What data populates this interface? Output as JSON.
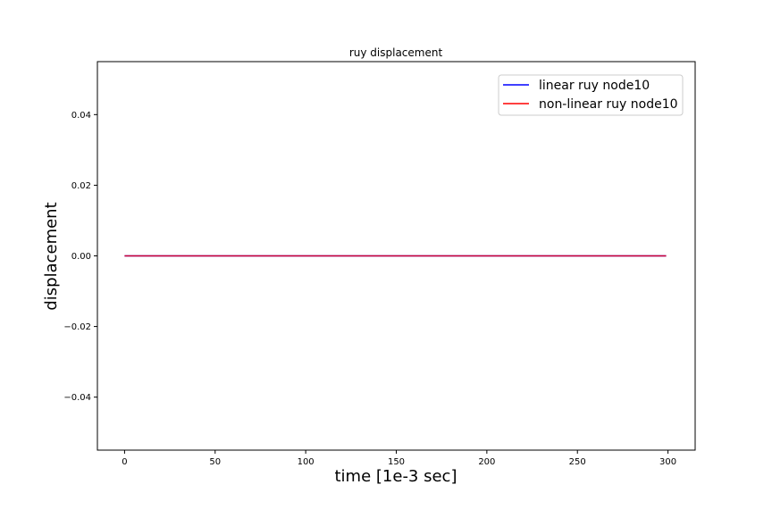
{
  "chart_data": {
    "type": "line",
    "title": "ruy displacement",
    "xlabel": "time [1e-3 sec]",
    "ylabel": "displacement",
    "xlim": [
      -15,
      315
    ],
    "ylim": [
      -0.055,
      0.055
    ],
    "x_ticks": [
      0,
      50,
      100,
      150,
      200,
      250,
      300
    ],
    "y_ticks": [
      -0.04,
      -0.02,
      0.0,
      0.02,
      0.04
    ],
    "x_tick_labels": [
      "0",
      "50",
      "100",
      "150",
      "200",
      "250",
      "300"
    ],
    "y_tick_labels": [
      "−0.04",
      "−0.02",
      "0.00",
      "0.02",
      "0.04"
    ],
    "grid": false,
    "legend_position": "top-right",
    "series": [
      {
        "name": "linear ruy node10",
        "color": "#0000ff",
        "x": [
          0,
          299
        ],
        "y": [
          0,
          0
        ]
      },
      {
        "name": "non-linear ruy node10",
        "color": "#ff0000",
        "x": [
          0,
          299
        ],
        "y": [
          0,
          0
        ]
      }
    ]
  }
}
